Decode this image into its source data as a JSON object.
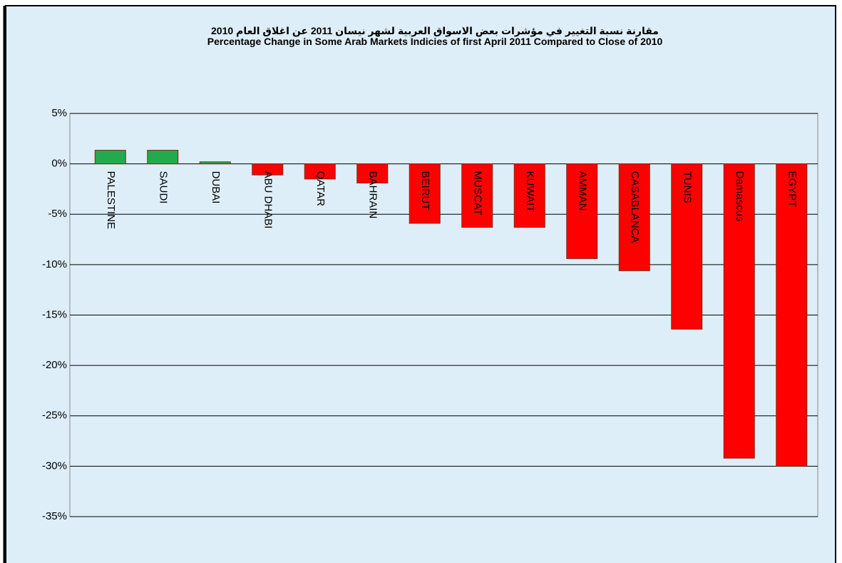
{
  "chart_data": {
    "type": "bar",
    "title": "مقارنة نسبة التغيير في  مؤشرات بعض الاسواق العربية لشهر نيسان 2011  عن اغلاق العام 2010",
    "subtitle": "Percentage  Change in Some Arab Markets Indicies of  first April 2011 Compared to Close  of 2010",
    "categories": [
      "PALESTINE",
      "SAUDI",
      "DUBAI",
      "ABU DHABI",
      "QATAR",
      "BAHRAIN",
      "BEIRUT",
      "MUSCAT",
      "KUWAIT",
      "AMMAN",
      "CASABLANCA",
      "TUNIS",
      "Damascus",
      "EGYPT"
    ],
    "values": [
      1.35,
      1.35,
      0.2,
      -1.1,
      -1.5,
      -1.9,
      -5.9,
      -6.3,
      -6.3,
      -9.4,
      -10.6,
      -16.4,
      -29.2,
      -30.0
    ],
    "colors": [
      "#22aa4e",
      "#22aa4e",
      "#22aa4e",
      "#ff0000",
      "#ff0000",
      "#ff0000",
      "#ff0000",
      "#ff0000",
      "#ff0000",
      "#ff0000",
      "#ff0000",
      "#ff0000",
      "#ff0000",
      "#ff0000"
    ],
    "ylim": [
      -35,
      5
    ],
    "yticks": [
      {
        "value": 5,
        "label": "5%"
      },
      {
        "value": 0,
        "label": "0%"
      },
      {
        "value": -5,
        "label": "-5%"
      },
      {
        "value": -10,
        "label": "-10%"
      },
      {
        "value": -15,
        "label": "-15%"
      },
      {
        "value": -20,
        "label": "-20%"
      },
      {
        "value": -25,
        "label": "-25%"
      },
      {
        "value": -30,
        "label": "-30%"
      },
      {
        "value": -35,
        "label": "-35%"
      }
    ],
    "grid": true
  }
}
